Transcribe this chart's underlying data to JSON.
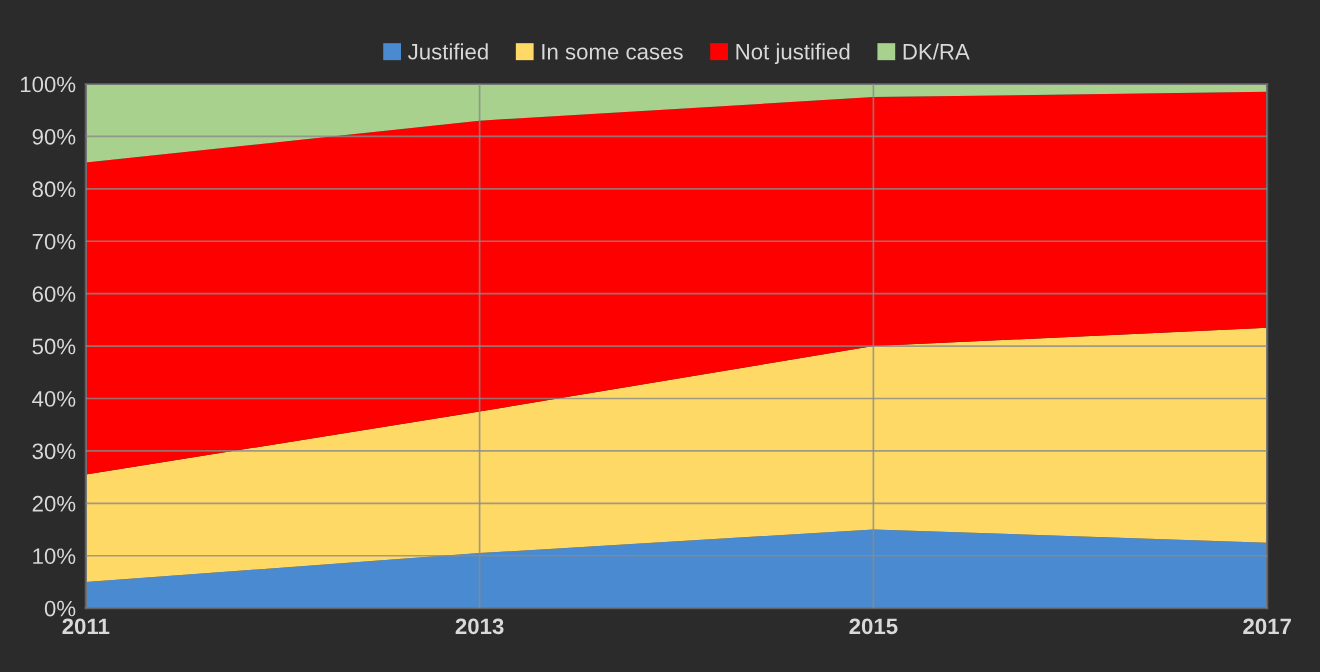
{
  "chart_data": {
    "type": "area",
    "stacked": true,
    "x": [
      2011,
      2013,
      2015,
      2017
    ],
    "series": [
      {
        "name": "Justified",
        "color": "#4a8ad0",
        "values": [
          5,
          10.5,
          15,
          12.5
        ]
      },
      {
        "name": "In some cases",
        "color": "#ffd966",
        "values": [
          20.5,
          27,
          35,
          41
        ]
      },
      {
        "name": "Not justified",
        "color": "#ff0000",
        "values": [
          59.5,
          55.5,
          47.5,
          45
        ]
      },
      {
        "name": "DK/RA",
        "color": "#a9d18e",
        "values": [
          15,
          7,
          2.5,
          1.5
        ]
      }
    ],
    "xlim": [
      2011,
      2017
    ],
    "xticks": [
      2011,
      2013,
      2015,
      2017
    ],
    "ylim": [
      0,
      100
    ],
    "yticks": [
      {
        "value": 0,
        "label": "0%"
      },
      {
        "value": 10,
        "label": "10%"
      },
      {
        "value": 20,
        "label": "20%"
      },
      {
        "value": 30,
        "label": "30%"
      },
      {
        "value": 40,
        "label": "40%"
      },
      {
        "value": 50,
        "label": "50%"
      },
      {
        "value": 60,
        "label": "60%"
      },
      {
        "value": 70,
        "label": "70%"
      },
      {
        "value": 80,
        "label": "80%"
      },
      {
        "value": 90,
        "label": "90%"
      },
      {
        "value": 100,
        "label": "100%"
      }
    ],
    "grid": true,
    "legend": "top"
  }
}
